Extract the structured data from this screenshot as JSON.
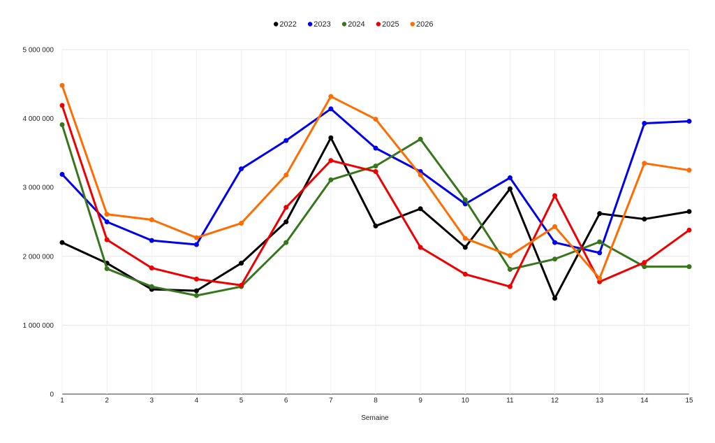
{
  "chart_data": {
    "type": "line",
    "title": "",
    "xlabel": "Semaine",
    "ylabel": "",
    "x": [
      1,
      2,
      3,
      4,
      5,
      6,
      7,
      8,
      9,
      10,
      11,
      12,
      13,
      14,
      15
    ],
    "x_tick_labels": [
      "1",
      "2",
      "3",
      "4",
      "5",
      "6",
      "7",
      "8",
      "9",
      "10",
      "11",
      "12",
      "13",
      "14",
      "15"
    ],
    "ylim": [
      0,
      5000000
    ],
    "y_ticks": [
      0,
      1000000,
      2000000,
      3000000,
      4000000,
      5000000
    ],
    "y_tick_labels": [
      "0",
      "1 000 000",
      "2 000 000",
      "3 000 000",
      "4 000 000",
      "5 000 000"
    ],
    "grid": true,
    "legend_position": "top-center",
    "series": [
      {
        "name": "2022",
        "color": "#000000",
        "values": [
          2200000,
          1900000,
          1520000,
          1500000,
          1900000,
          2500000,
          3720000,
          2440000,
          2690000,
          2130000,
          2980000,
          1390000,
          2620000,
          2540000,
          2650000
        ]
      },
      {
        "name": "2023",
        "color": "#0000ee",
        "values": [
          3190000,
          2500000,
          2230000,
          2170000,
          3270000,
          3680000,
          4140000,
          3570000,
          3230000,
          2760000,
          3140000,
          2200000,
          2050000,
          3930000,
          3960000
        ]
      },
      {
        "name": "2024",
        "color": "#38761d",
        "values": [
          3910000,
          1820000,
          1560000,
          1430000,
          1560000,
          2200000,
          3110000,
          3310000,
          3700000,
          2820000,
          1810000,
          1960000,
          2210000,
          1850000,
          1850000
        ]
      },
      {
        "name": "2025",
        "color": "#ee0000",
        "values": [
          4190000,
          2240000,
          1830000,
          1670000,
          1580000,
          2710000,
          3390000,
          3230000,
          2130000,
          1740000,
          1560000,
          2880000,
          1630000,
          1910000,
          2380000
        ]
      },
      {
        "name": "2026",
        "color": "#ff6d01",
        "values": [
          4480000,
          2610000,
          2530000,
          2270000,
          2480000,
          3180000,
          4320000,
          3990000,
          3180000,
          2260000,
          2010000,
          2430000,
          1680000,
          3350000,
          3250000
        ]
      }
    ]
  }
}
